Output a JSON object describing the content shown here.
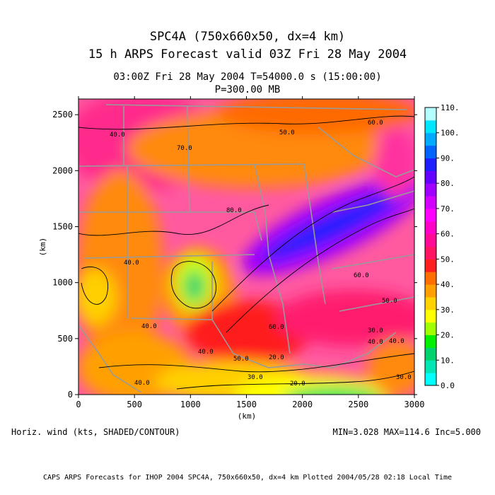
{
  "title": {
    "line1": "SPC4A (750x660x50, dx=4 km)",
    "line2": "15 h ARPS Forecast valid 03Z Fri 28 May 2004",
    "line3": "03:00Z Fri 28 May 2004      T=54000.0 s (15:00:00)",
    "line4": "P=300.00 MB"
  },
  "axes": {
    "x_label": "(km)",
    "y_label": "(km)",
    "x_ticks": [
      "0",
      "500",
      "1000",
      "1500",
      "2000",
      "2500",
      "3000"
    ],
    "y_ticks": [
      "0",
      "500",
      "1000",
      "1500",
      "2000",
      "2500"
    ],
    "x_range": [
      0,
      3000
    ],
    "y_range": [
      0,
      2640
    ]
  },
  "colorbar": {
    "levels": [
      "0.0",
      "10.",
      "20.",
      "30.",
      "40.",
      "50.",
      "60.",
      "70.",
      "80.",
      "90.",
      "100.",
      "110."
    ],
    "colors": [
      "#00ffff",
      "#00e6b4",
      "#00d26e",
      "#00f000",
      "#a0ff00",
      "#ffff00",
      "#ffd200",
      "#ffa000",
      "#ff6e00",
      "#ff1e1e",
      "#ff1464",
      "#ff0a96",
      "#ff00c8",
      "#ff00ff",
      "#d200ff",
      "#a000ff",
      "#6400ff",
      "#1e1eff",
      "#0064ff",
      "#00aaff",
      "#00e6ff",
      "#b4ffff"
    ]
  },
  "contour_labels": [
    "40.0",
    "50.0",
    "60.0",
    "70.0",
    "80.0",
    "40.0",
    "40.0",
    "40.0",
    "30.0",
    "20.0",
    "30.0",
    "20.0",
    "40.0",
    "50.0",
    "60.0",
    "40.0",
    "50.0",
    "60.0",
    "40.0",
    "30.0"
  ],
  "field_label": "Horiz. wind (kts, SHADED/CONTOUR)",
  "stats": "MIN=3.028 MAX=114.6 Inc=5.000",
  "footer": "CAPS ARPS Forecasts for IHOP 2004   SPC4A, 750x660x50, dx=4 km   Plotted 2004/05/28 02:18 Local Time"
}
